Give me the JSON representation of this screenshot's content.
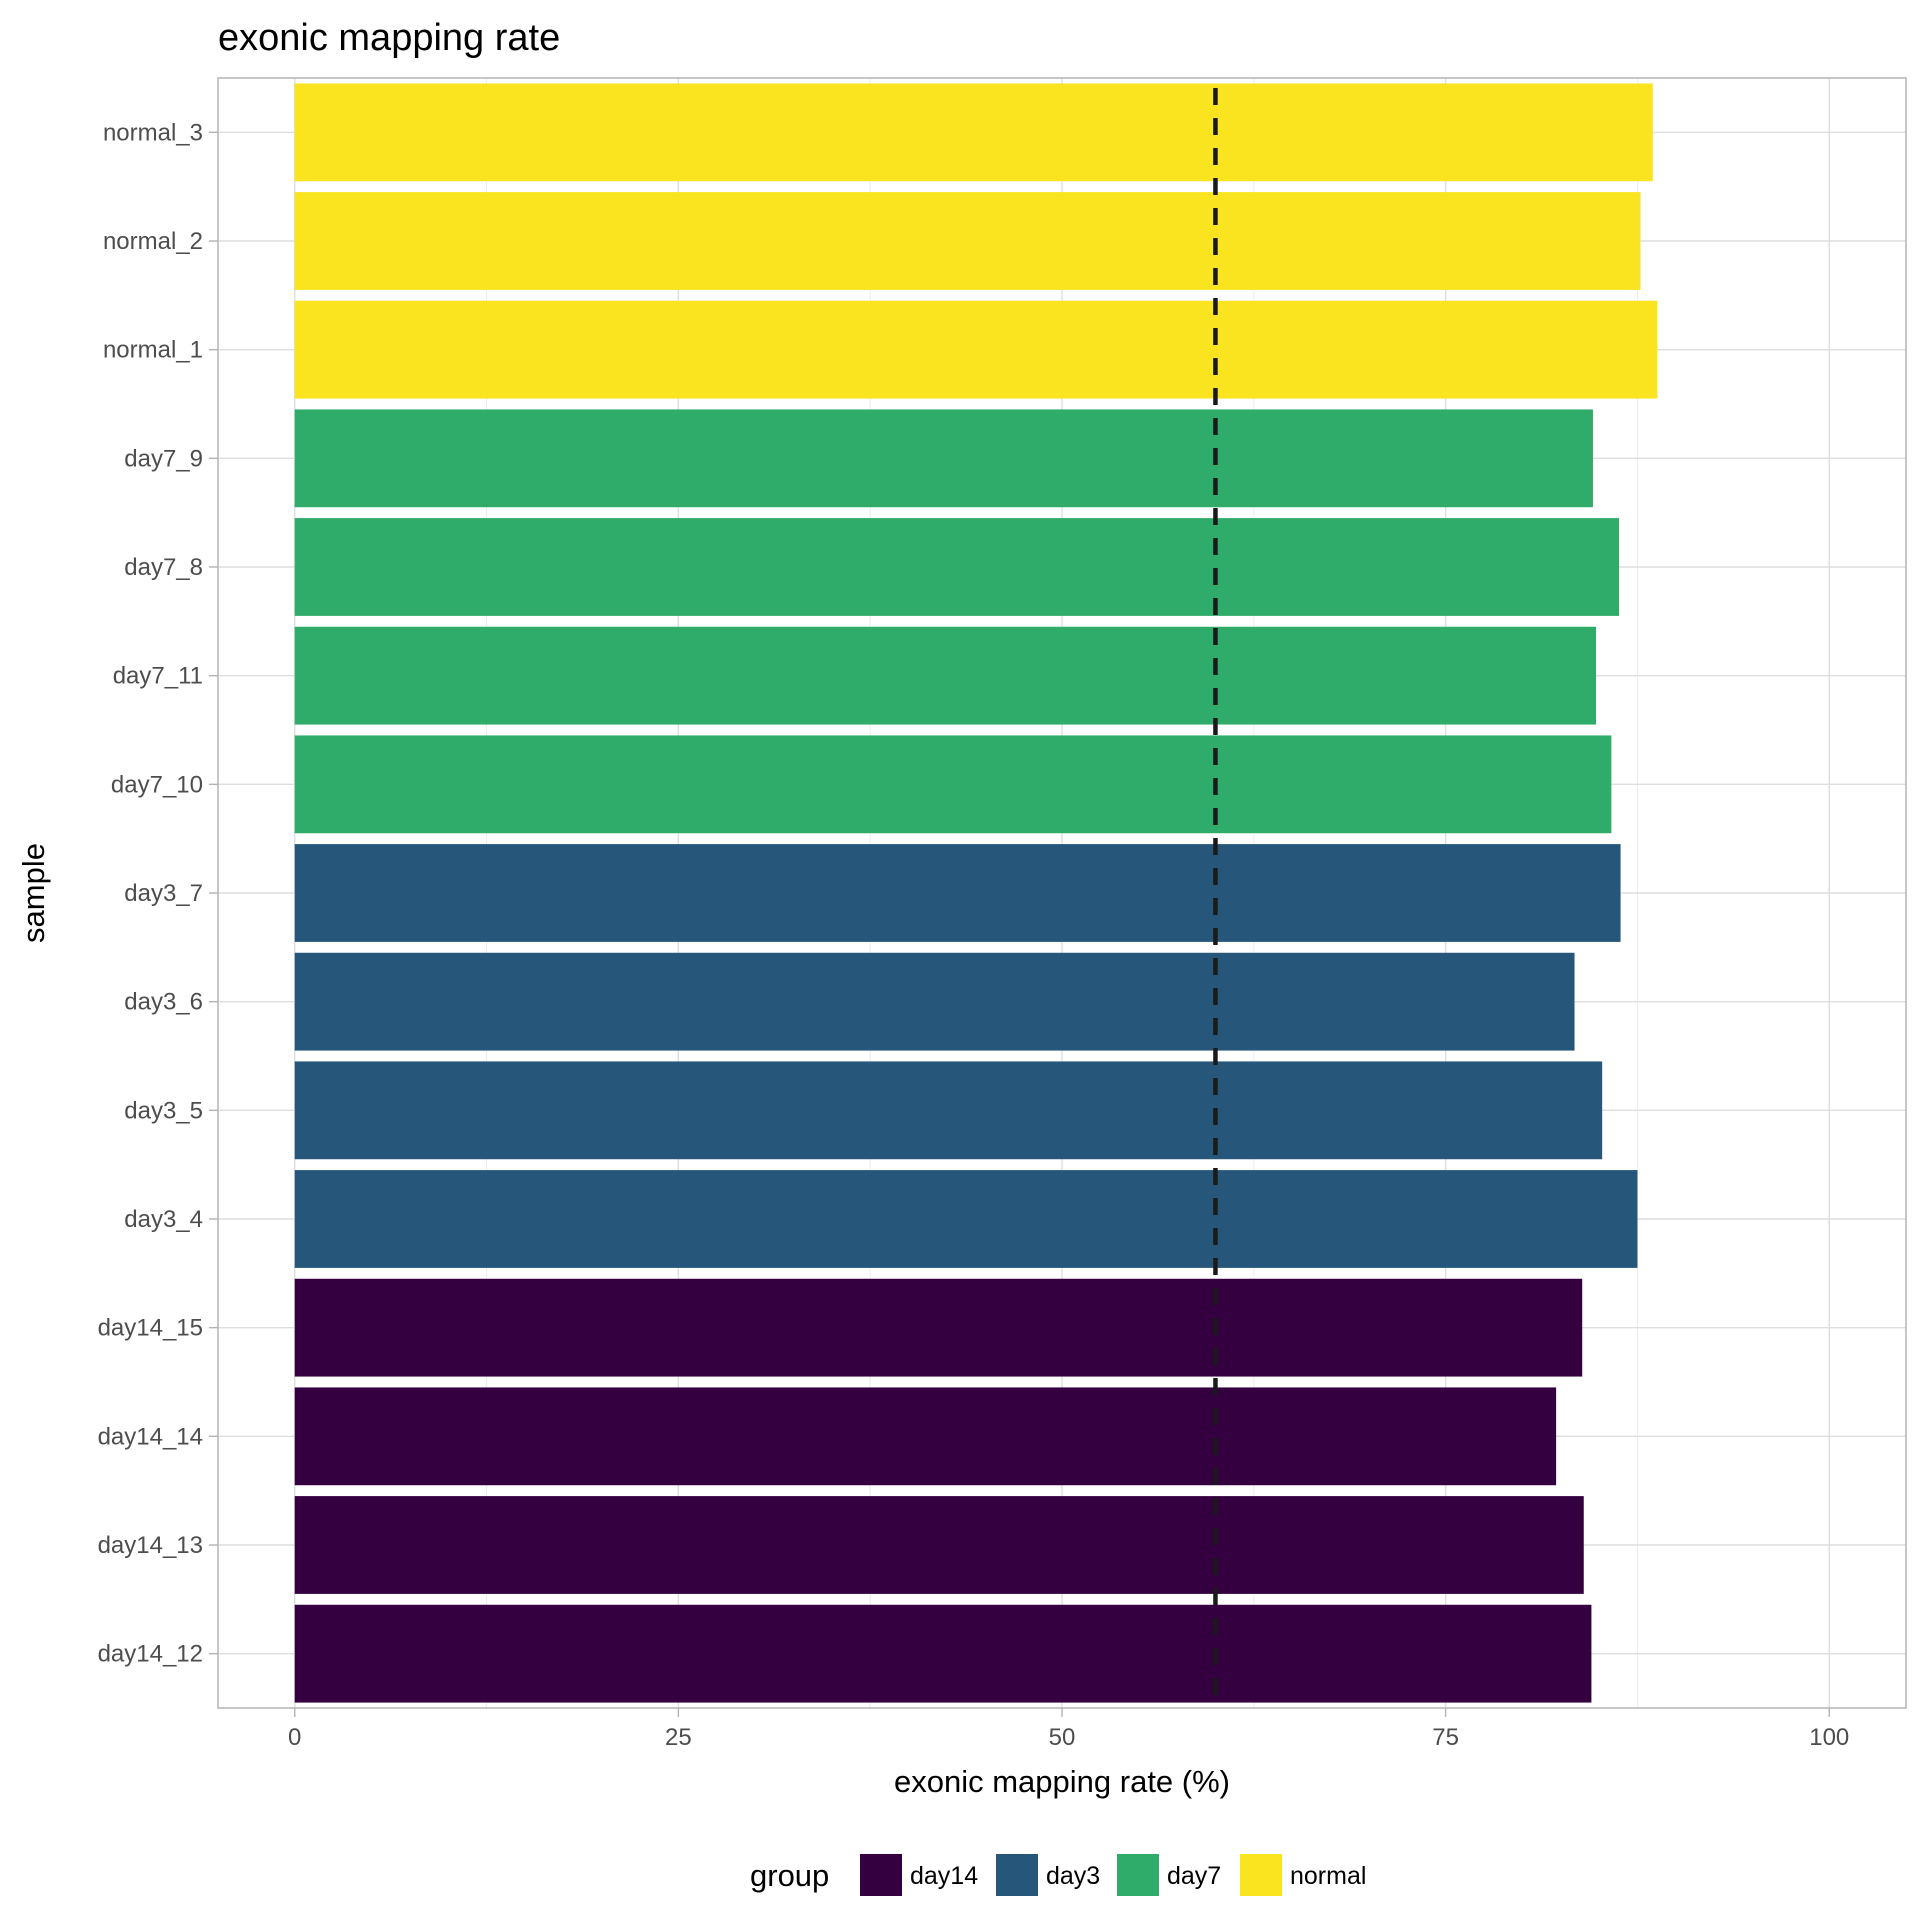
{
  "chart_data": {
    "type": "bar",
    "orientation": "horizontal",
    "title": "exonic mapping rate",
    "xlabel": "exonic mapping rate (%)",
    "ylabel": "sample",
    "xlim": [
      -5,
      105
    ],
    "x_ticks": [
      0,
      25,
      50,
      75,
      100
    ],
    "x_tick_labels": [
      "0",
      "25",
      "50",
      "75",
      "100"
    ],
    "grid": true,
    "reference_line": {
      "x": 60,
      "style": "dashed",
      "color": "#1a1a1a"
    },
    "categories": [
      "day14_12",
      "day14_13",
      "day14_14",
      "day14_15",
      "day3_4",
      "day3_5",
      "day3_6",
      "day3_7",
      "day7_10",
      "day7_11",
      "day7_8",
      "day7_9",
      "normal_1",
      "normal_2",
      "normal_3"
    ],
    "values": [
      84.5,
      84.0,
      82.2,
      83.9,
      87.5,
      85.2,
      83.4,
      86.4,
      85.8,
      84.8,
      86.3,
      84.6,
      88.8,
      87.7,
      88.5
    ],
    "groups": [
      "day14",
      "day14",
      "day14",
      "day14",
      "day3",
      "day3",
      "day3",
      "day3",
      "day7",
      "day7",
      "day7",
      "day7",
      "normal",
      "normal",
      "normal"
    ],
    "legend": {
      "title": "group",
      "position": "bottom",
      "entries": [
        {
          "name": "day14",
          "color": "#35003f"
        },
        {
          "name": "day3",
          "color": "#27567b"
        },
        {
          "name": "day7",
          "color": "#30ac6a"
        },
        {
          "name": "normal",
          "color": "#fae31f"
        }
      ]
    }
  }
}
